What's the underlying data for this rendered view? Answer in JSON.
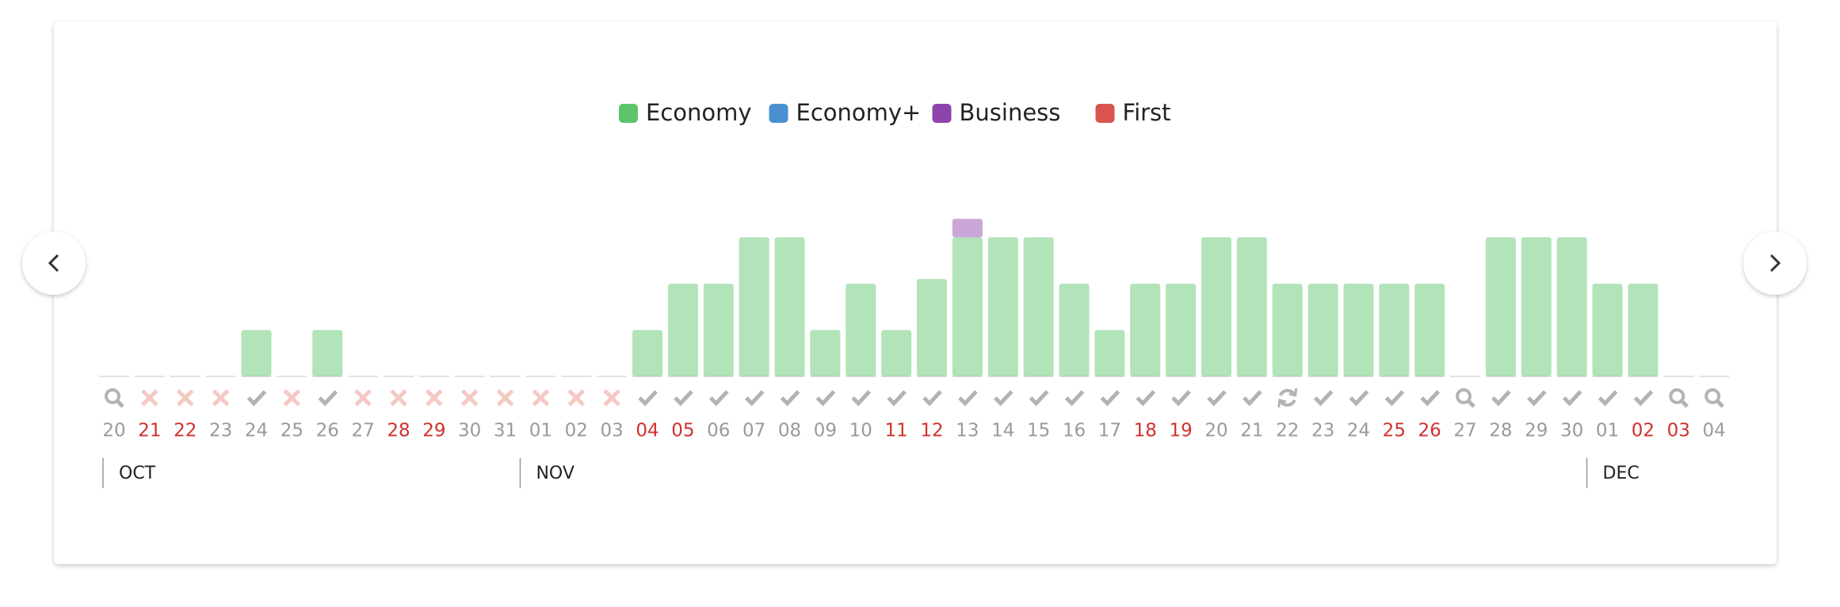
{
  "chart_data": {
    "type": "bar",
    "stacked": true,
    "months": [
      {
        "name": "OCT",
        "categories": [
          "20",
          "21",
          "22",
          "23",
          "24",
          "25",
          "26",
          "27",
          "28",
          "29",
          "30",
          "31"
        ]
      },
      {
        "name": "NOV",
        "categories": [
          "01",
          "02",
          "03",
          "04",
          "05",
          "06",
          "07",
          "08",
          "09",
          "10",
          "11",
          "12",
          "13",
          "14",
          "15",
          "16",
          "17",
          "18",
          "19",
          "20",
          "21",
          "22",
          "23",
          "24",
          "25",
          "26",
          "27",
          "28",
          "29",
          "30"
        ]
      },
      {
        "name": "DEC",
        "categories": [
          "01",
          "02",
          "03",
          "04"
        ]
      }
    ],
    "label_colors": [
      "#9a9a9a",
      "#d0312d",
      "#d0312d",
      "#9a9a9a",
      "#9a9a9a",
      "#9a9a9a",
      "#9a9a9a",
      "#9a9a9a",
      "#d0312d",
      "#d0312d",
      "#9a9a9a",
      "#9a9a9a",
      "#9a9a9a",
      "#9a9a9a",
      "#9a9a9a",
      "#d0312d",
      "#d0312d",
      "#9a9a9a",
      "#9a9a9a",
      "#9a9a9a",
      "#9a9a9a",
      "#9a9a9a",
      "#d0312d",
      "#d0312d",
      "#9a9a9a",
      "#9a9a9a",
      "#9a9a9a",
      "#9a9a9a",
      "#9a9a9a",
      "#d0312d",
      "#d0312d",
      "#9a9a9a",
      "#9a9a9a",
      "#9a9a9a",
      "#9a9a9a",
      "#9a9a9a",
      "#d0312d",
      "#d0312d",
      "#9a9a9a",
      "#9a9a9a",
      "#9a9a9a",
      "#9a9a9a",
      "#9a9a9a",
      "#d0312d",
      "#d0312d",
      "#9a9a9a"
    ],
    "status": [
      "search",
      "x",
      "x",
      "x",
      "check",
      "x",
      "check",
      "x",
      "x",
      "x",
      "x",
      "x",
      "x",
      "x",
      "x",
      "check",
      "check",
      "check",
      "check",
      "check",
      "check",
      "check",
      "check",
      "check",
      "check",
      "check",
      "check",
      "check",
      "check",
      "check",
      "check",
      "check",
      "check",
      "refresh",
      "check",
      "check",
      "check",
      "check",
      "search",
      "check",
      "check",
      "check",
      "check",
      "check",
      "search",
      "search"
    ],
    "series": [
      {
        "name": "Economy",
        "color": "#5cc46b",
        "values": [
          0,
          0,
          0,
          0,
          1,
          0,
          1,
          0,
          0,
          0,
          0,
          0,
          0,
          0,
          0,
          1,
          2,
          2,
          3,
          3,
          1,
          2,
          1,
          2.1,
          3,
          3,
          3,
          2,
          1,
          2,
          2,
          3,
          3,
          2,
          2,
          2,
          2,
          2,
          0,
          3,
          3,
          3,
          2,
          2,
          0,
          0
        ]
      },
      {
        "name": "Economy+",
        "color": "#4a90d0",
        "values": [
          0,
          0,
          0,
          0,
          0,
          0,
          0,
          0,
          0,
          0,
          0,
          0,
          0,
          0,
          0,
          0,
          0,
          0,
          0,
          0,
          0,
          0,
          0,
          0,
          0,
          0,
          0,
          0,
          0,
          0,
          0,
          0,
          0,
          0,
          0,
          0,
          0,
          0,
          0,
          0,
          0,
          0,
          0,
          0,
          0,
          0
        ]
      },
      {
        "name": "Business",
        "color": "#8e44ad",
        "values": [
          0,
          0,
          0,
          0,
          0,
          0,
          0,
          0,
          0,
          0,
          0,
          0,
          0,
          0,
          0,
          0,
          0,
          0,
          0,
          0,
          0,
          0,
          0,
          0,
          0.4,
          0,
          0,
          0,
          0,
          0,
          0,
          0,
          0,
          0,
          0,
          0,
          0,
          0,
          0,
          0,
          0,
          0,
          0,
          0,
          0,
          0
        ]
      },
      {
        "name": "First",
        "color": "#d9534f",
        "values": [
          0,
          0,
          0,
          0,
          0,
          0,
          0,
          0,
          0,
          0,
          0,
          0,
          0,
          0,
          0,
          0,
          0,
          0,
          0,
          0,
          0,
          0,
          0,
          0,
          0,
          0,
          0,
          0,
          0,
          0,
          0,
          0,
          0,
          0,
          0,
          0,
          0,
          0,
          0,
          0,
          0,
          0,
          0,
          0,
          0,
          0
        ]
      }
    ]
  }
}
